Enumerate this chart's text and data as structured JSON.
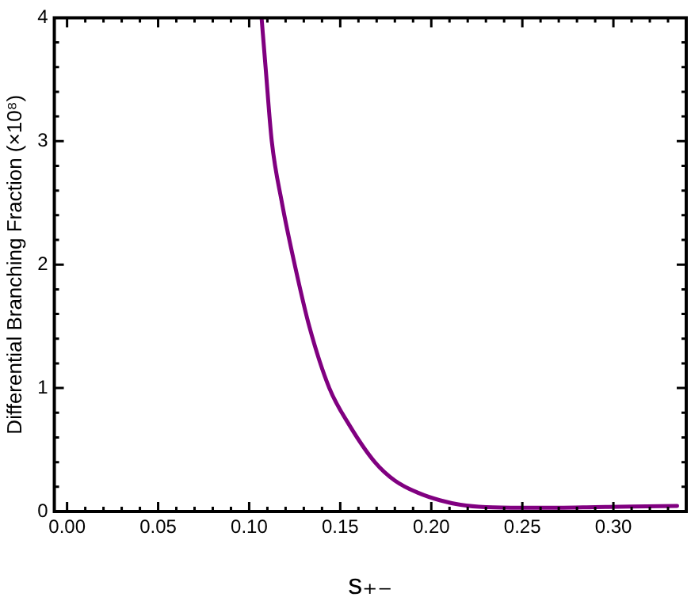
{
  "chart_data": {
    "type": "line",
    "xlabel": "s₊₋",
    "ylabel": "Differential Branching Fraction (×10⁸)",
    "xlim": [
      -0.007,
      0.34
    ],
    "ylim": [
      0,
      4
    ],
    "xticks": [
      {
        "value": 0,
        "label": "0.00"
      },
      {
        "value": 0.01,
        "label": null
      },
      {
        "value": 0.02,
        "label": null
      },
      {
        "value": 0.03,
        "label": null
      },
      {
        "value": 0.04,
        "label": null
      },
      {
        "value": 0.05,
        "label": "0.05"
      },
      {
        "value": 0.06,
        "label": null
      },
      {
        "value": 0.07,
        "label": null
      },
      {
        "value": 0.08,
        "label": null
      },
      {
        "value": 0.09,
        "label": null
      },
      {
        "value": 0.1,
        "label": "0.10"
      },
      {
        "value": 0.11,
        "label": null
      },
      {
        "value": 0.12,
        "label": null
      },
      {
        "value": 0.13,
        "label": null
      },
      {
        "value": 0.14,
        "label": null
      },
      {
        "value": 0.15,
        "label": "0.15"
      },
      {
        "value": 0.16,
        "label": null
      },
      {
        "value": 0.17,
        "label": null
      },
      {
        "value": 0.18,
        "label": null
      },
      {
        "value": 0.19,
        "label": null
      },
      {
        "value": 0.2,
        "label": "0.20"
      },
      {
        "value": 0.21,
        "label": null
      },
      {
        "value": 0.22,
        "label": null
      },
      {
        "value": 0.23,
        "label": null
      },
      {
        "value": 0.24,
        "label": null
      },
      {
        "value": 0.25,
        "label": "0.25"
      },
      {
        "value": 0.26,
        "label": null
      },
      {
        "value": 0.27,
        "label": null
      },
      {
        "value": 0.28,
        "label": null
      },
      {
        "value": 0.29,
        "label": null
      },
      {
        "value": 0.3,
        "label": "0.30"
      },
      {
        "value": 0.31,
        "label": null
      },
      {
        "value": 0.32,
        "label": null
      },
      {
        "value": 0.33,
        "label": null
      }
    ],
    "yticks": [
      0,
      {
        "value": 0.2,
        "label": null
      },
      {
        "value": 0.4,
        "label": null
      },
      {
        "value": 0.6,
        "label": null
      },
      {
        "value": 0.8,
        "label": null
      },
      1,
      {
        "value": 1.2,
        "label": null
      },
      {
        "value": 1.4,
        "label": null
      },
      {
        "value": 1.6,
        "label": null
      },
      {
        "value": 1.8,
        "label": null
      },
      2,
      {
        "value": 2.2,
        "label": null
      },
      {
        "value": 2.4,
        "label": null
      },
      {
        "value": 2.6,
        "label": null
      },
      {
        "value": 2.8,
        "label": null
      },
      3,
      {
        "value": 3.2,
        "label": null
      },
      {
        "value": 3.4,
        "label": null
      },
      {
        "value": 3.6,
        "label": null
      },
      {
        "value": 3.8,
        "label": null
      },
      4
    ],
    "grid": false,
    "legend": false,
    "marker": "none",
    "line_style": "solid",
    "series": [
      {
        "color": "#800080",
        "x": [
          0.1068,
          0.109,
          0.1124,
          0.118,
          0.125,
          0.133,
          0.144,
          0.155,
          0.169,
          0.18,
          0.193,
          0.205,
          0.216,
          0.23,
          0.25,
          0.27,
          0.29,
          0.31,
          0.335
        ],
        "values": [
          4.0,
          3.6,
          3.0,
          2.5,
          2.0,
          1.5,
          1.0,
          0.7,
          0.4,
          0.25,
          0.15,
          0.09,
          0.055,
          0.035,
          0.03,
          0.03,
          0.035,
          0.04,
          0.045
        ]
      }
    ]
  }
}
